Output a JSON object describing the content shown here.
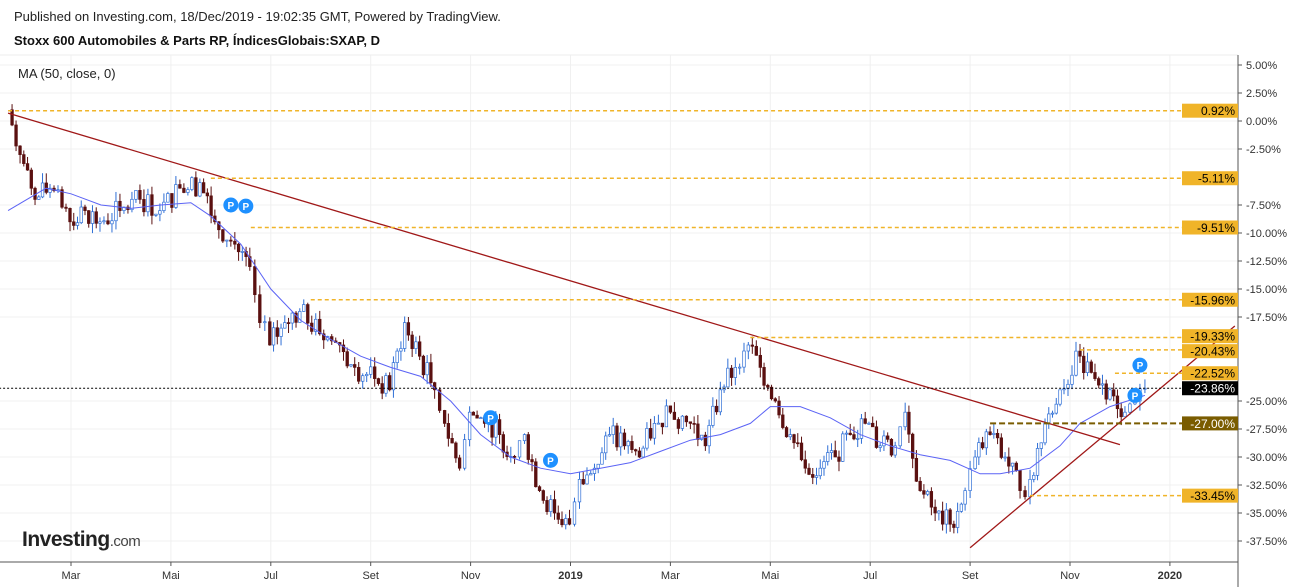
{
  "header": {
    "published": "Published on Investing.com, 18/Dec/2019 - 19:02:35 GMT, Powered by TradingView.",
    "title": "Stoxx 600 Automobiles & Parts RP, ÍndicesGlobais:SXAP, D"
  },
  "indicator_label": "MA (50, close, 0)",
  "logo": {
    "main": "Investing",
    "suffix": ".com"
  },
  "colors": {
    "up": "#2f6fd6",
    "down": "#5a1010",
    "ma": "#5b63f5",
    "trend": "#a01818",
    "level": "#f0b429",
    "level_dark": "#7a5c00",
    "marker": "#1e90ff"
  },
  "chart_data": {
    "type": "candlestick",
    "ylabel": "%",
    "ylim": [
      -39.5,
      6.5
    ],
    "y_ticks": [
      "5.00%",
      "2.50%",
      "0.00%",
      "-2.50%",
      "-7.50%",
      "-10.00%",
      "-12.50%",
      "-15.00%",
      "-17.50%",
      "-25.00%",
      "-27.50%",
      "-30.00%",
      "-32.50%",
      "-35.00%",
      "-37.50%"
    ],
    "y_tick_values": [
      5,
      2.5,
      0,
      -2.5,
      -7.5,
      -10,
      -12.5,
      -15,
      -17.5,
      -25,
      -27.5,
      -30,
      -32.5,
      -35,
      -37.5
    ],
    "x_ticks": [
      {
        "label": "Mar",
        "t": 2
      },
      {
        "label": "Mai",
        "t": 4
      },
      {
        "label": "Jul",
        "t": 6
      },
      {
        "label": "Set",
        "t": 8
      },
      {
        "label": "Nov",
        "t": 10
      },
      {
        "label": "2019",
        "t": 12
      },
      {
        "label": "Mar",
        "t": 14
      },
      {
        "label": "Mai",
        "t": 16
      },
      {
        "label": "Jul",
        "t": 18
      },
      {
        "label": "Set",
        "t": 20
      },
      {
        "label": "Nov",
        "t": 22
      },
      {
        "label": "2020",
        "t": 24
      }
    ],
    "x_unit": "months since Jan 2018",
    "close_series": {
      "t": [
        0.74,
        0.98,
        1.28,
        1.58,
        1.98,
        2.28,
        2.58,
        2.98,
        3.38,
        3.78,
        4.18,
        4.58,
        4.88,
        5.28,
        5.58,
        5.78,
        5.98,
        6.28,
        6.58,
        6.98,
        7.38,
        7.68,
        8.08,
        8.38,
        8.68,
        8.98,
        9.28,
        9.48,
        9.78,
        9.98,
        10.28,
        10.58,
        10.88,
        11.08,
        11.38,
        11.68,
        11.98,
        12.18,
        12.48,
        12.78,
        13.08,
        13.38,
        13.68,
        14.0,
        14.4,
        14.7,
        15.0,
        15.3,
        15.56,
        15.8,
        16.1,
        16.4,
        16.7,
        17.0,
        17.3,
        17.6,
        17.9,
        18.2,
        18.5,
        18.7,
        19.0,
        19.3,
        19.6,
        19.9,
        20.1,
        20.4,
        20.7,
        21.0,
        21.2,
        21.5,
        21.8,
        22.2,
        22.5,
        22.8,
        23.1,
        23.3,
        23.5
      ],
      "values": [
        1,
        -3,
        -7,
        -6,
        -9,
        -8,
        -9,
        -8,
        -7,
        -8,
        -6,
        -5.5,
        -9,
        -11,
        -13,
        -18,
        -20,
        -18,
        -17,
        -19,
        -20,
        -22,
        -23,
        -24,
        -18,
        -21,
        -24,
        -27,
        -31,
        -26,
        -27,
        -28,
        -30,
        -28,
        -33,
        -35,
        -36,
        -32,
        -31,
        -28,
        -29,
        -30,
        -27,
        -26,
        -27,
        -29,
        -24,
        -22,
        -20,
        -22,
        -25,
        -28,
        -31,
        -31,
        -30,
        -28,
        -27,
        -29,
        -29,
        -26,
        -33,
        -35,
        -36,
        -33,
        -30,
        -28,
        -30,
        -33,
        -32,
        -27,
        -24,
        -21,
        -23,
        -24,
        -26,
        -25,
        -23.86
      ]
    },
    "ma50": {
      "t": [
        0.74,
        1.5,
        2.0,
        2.6,
        3.2,
        3.8,
        4.4,
        4.8,
        5.4,
        6.0,
        6.6,
        7.2,
        7.8,
        8.4,
        9.0,
        9.6,
        10.2,
        10.8,
        11.4,
        12.0,
        12.6,
        13.2,
        13.8,
        14.4,
        15.0,
        15.6,
        16.0,
        16.6,
        17.2,
        17.8,
        18.4,
        19.0,
        19.6,
        20.2,
        20.6,
        21.2,
        21.8,
        22.2,
        22.8,
        23.5
      ],
      "values": [
        -8,
        -6,
        -6.5,
        -7.5,
        -7.8,
        -7.5,
        -7.3,
        -8.5,
        -11,
        -15,
        -17.8,
        -19.5,
        -21,
        -22,
        -22.8,
        -25,
        -28,
        -30,
        -31,
        -31.5,
        -31,
        -30.5,
        -29.5,
        -28.5,
        -28,
        -27,
        -25.5,
        -25.5,
        -26.5,
        -28,
        -29,
        -29.8,
        -30.3,
        -31.5,
        -31.5,
        -31,
        -29,
        -27,
        -25.5,
        -24.5
      ]
    },
    "trendlines": [
      {
        "from": {
          "t": 0.74,
          "v": 0.7
        },
        "to": {
          "t": 23.0,
          "v": -28.9
        }
      },
      {
        "from": {
          "t": 20.0,
          "v": -38.1
        },
        "to": {
          "t": 25.3,
          "v": -18.3
        }
      }
    ],
    "levels": [
      {
        "value": 0.92,
        "label": "0.92%",
        "from_t": 0.74,
        "style": "gold"
      },
      {
        "value": -5.11,
        "label": "-5.11%",
        "from_t": 4.8,
        "style": "gold"
      },
      {
        "value": -9.51,
        "label": "-9.51%",
        "from_t": 5.6,
        "style": "gold"
      },
      {
        "value": -15.96,
        "label": "-15.96%",
        "from_t": 6.8,
        "style": "gold"
      },
      {
        "value": -19.33,
        "label": "-19.33%",
        "from_t": 15.6,
        "style": "gold"
      },
      {
        "value": -20.43,
        "label": "-20.43%",
        "from_t": 22.2,
        "style": "gold"
      },
      {
        "value": -22.52,
        "label": "-22.52%",
        "from_t": 22.9,
        "style": "gold"
      },
      {
        "value": -23.86,
        "label": "-23.86%",
        "from_t": 0,
        "style": "last"
      },
      {
        "value": -27.0,
        "label": "-27.00%",
        "from_t": 20.4,
        "style": "dark"
      },
      {
        "value": -33.45,
        "label": "-33.45%",
        "from_t": 21.2,
        "style": "gold"
      }
    ],
    "markers": {
      "label": "P",
      "points": [
        {
          "t": 5.2,
          "v": -7.5
        },
        {
          "t": 5.5,
          "v": -7.6
        },
        {
          "t": 10.4,
          "v": -26.5
        },
        {
          "t": 11.6,
          "v": -30.3
        },
        {
          "t": 23.4,
          "v": -21.8
        },
        {
          "t": 23.3,
          "v": -24.5
        }
      ]
    }
  }
}
